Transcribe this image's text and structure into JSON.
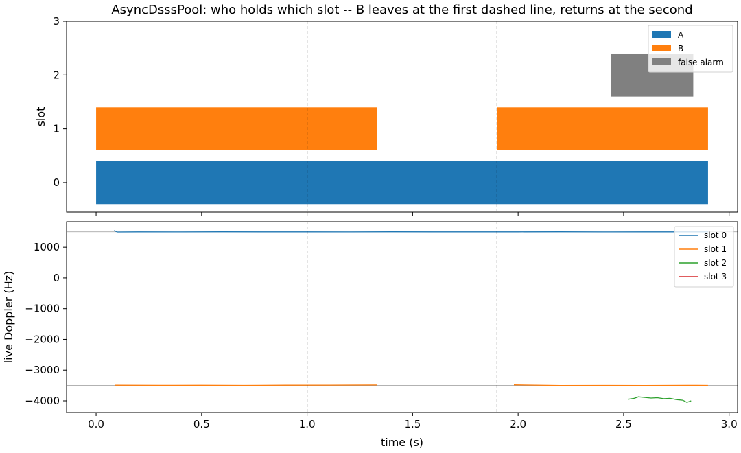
{
  "chart_data": [
    {
      "type": "bar",
      "subtype": "horizontal-gantt",
      "title": "AsyncDsssPool: who holds which slot -- B leaves at the first dashed line, returns at the second",
      "xlabel": "",
      "ylabel": "slot",
      "xlim": [
        -0.14,
        3.04
      ],
      "ylim": [
        -0.55,
        3
      ],
      "yticks": [
        0,
        1,
        2,
        3
      ],
      "xticks": [
        0.0,
        0.5,
        1.0,
        1.5,
        2.0,
        2.5,
        3.0
      ],
      "grid": false,
      "legend_position": "top-right",
      "series": [
        {
          "name": "A",
          "color": "#1f77b4",
          "bars": [
            {
              "slot": 0,
              "start": 0.0,
              "end": 2.9
            }
          ]
        },
        {
          "name": "B",
          "color": "#ff7f0e",
          "bars": [
            {
              "slot": 1,
              "start": 0.0,
              "end": 1.33
            },
            {
              "slot": 1,
              "start": 1.9,
              "end": 2.9
            }
          ]
        },
        {
          "name": "false alarm",
          "color": "#808080",
          "bars": [
            {
              "slot": 2,
              "start": 2.44,
              "end": 2.83
            }
          ]
        }
      ],
      "bar_height": 0.8,
      "dashed_lines_x": [
        1.0,
        1.9
      ]
    },
    {
      "type": "line",
      "xlabel": "time (s)",
      "ylabel": "live Doppler (Hz)",
      "xlim": [
        -0.14,
        3.04
      ],
      "ylim": [
        -4380,
        1830
      ],
      "yticks": [
        1000,
        0,
        -1000,
        -2000,
        -3000,
        -4000
      ],
      "ytick_labels": [
        "1000",
        "0",
        "−1000",
        "−2000",
        "−3000",
        "−4000"
      ],
      "xticks": [
        0.0,
        0.5,
        1.0,
        1.5,
        2.0,
        2.5,
        3.0
      ],
      "xtick_labels": [
        "0.0",
        "0.5",
        "1.0",
        "1.5",
        "2.0",
        "2.5",
        "3.0"
      ],
      "grid": false,
      "legend_position": "top-right",
      "reference_lines_y": [
        1500,
        -3500
      ],
      "dashed_lines_x": [
        1.0,
        1.9
      ],
      "series": [
        {
          "name": "slot 0",
          "color": "#1f77b4",
          "segments": [
            {
              "x": [
                0.085,
                0.1,
                0.2,
                0.4,
                0.6,
                0.8,
                1.0,
                1.2,
                1.4,
                1.6,
                1.8,
                2.0,
                2.2,
                2.4,
                2.6,
                2.8,
                2.9
              ],
              "y": [
                1545,
                1495,
                1500,
                1498,
                1501,
                1499,
                1500,
                1498,
                1501,
                1499,
                1500,
                1499,
                1501,
                1498,
                1500,
                1499,
                1500
              ]
            }
          ]
        },
        {
          "name": "slot 1",
          "color": "#ff7f0e",
          "segments": [
            {
              "x": [
                0.09,
                0.3,
                0.5,
                0.7,
                0.9,
                1.1,
                1.33
              ],
              "y": [
                -3490,
                -3495,
                -3493,
                -3497,
                -3492,
                -3488,
                -3485
              ]
            },
            {
              "x": [
                1.98,
                2.2,
                2.4,
                2.6,
                2.8,
                2.9
              ],
              "y": [
                -3480,
                -3500,
                -3497,
                -3499,
                -3496,
                -3498
              ]
            }
          ]
        },
        {
          "name": "slot 2",
          "color": "#2ca02c",
          "segments": [
            {
              "x": [
                2.52,
                2.55,
                2.57,
                2.6,
                2.63,
                2.66,
                2.69,
                2.72,
                2.75,
                2.78,
                2.8,
                2.82
              ],
              "y": [
                -3950,
                -3920,
                -3870,
                -3890,
                -3910,
                -3900,
                -3930,
                -3920,
                -3960,
                -3980,
                -4050,
                -4000
              ]
            }
          ]
        },
        {
          "name": "slot 3",
          "color": "#d62728",
          "segments": []
        }
      ]
    }
  ]
}
